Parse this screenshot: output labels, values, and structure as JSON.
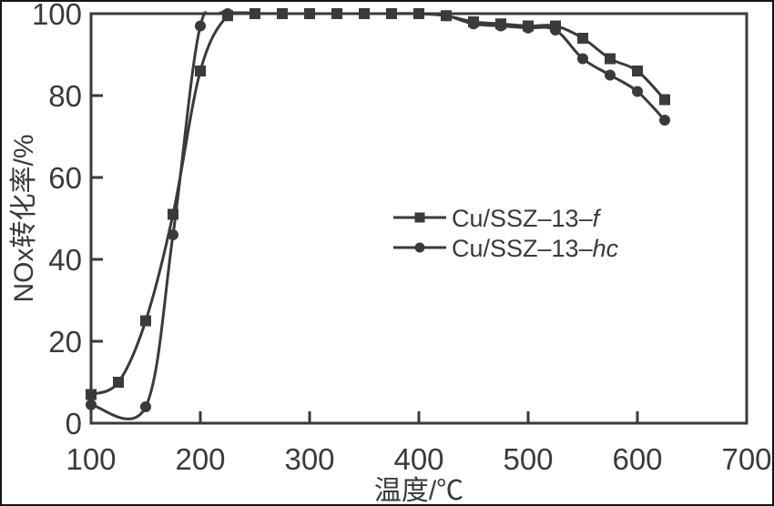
{
  "figure": {
    "background_color": "#ffffff",
    "ink_color": "#3a3a3c",
    "outer_border_color": "#141414"
  },
  "chart_data": {
    "type": "line",
    "title": "",
    "xlabel": "温度/℃",
    "ylabel": "NOx转化率/%",
    "xlim": [
      100,
      700
    ],
    "ylim": [
      0,
      100
    ],
    "x_ticks": [
      100,
      200,
      300,
      400,
      500,
      600,
      700
    ],
    "y_ticks": [
      0,
      20,
      40,
      60,
      80,
      100
    ],
    "grid": false,
    "legend": {
      "position": "center-right",
      "entries": [
        "Cu/SSZ-13-f",
        "Cu/SSZ-13-hc"
      ]
    },
    "series": [
      {
        "name": "Cu/SSZ-13-f",
        "label_prefix": "Cu/SSZ–13–",
        "label_italic": "f",
        "marker": "square",
        "color": "#3a3a3c",
        "points": [
          [
            100,
            7
          ],
          [
            125,
            10
          ],
          [
            150,
            25
          ],
          [
            175,
            51
          ],
          [
            200,
            86
          ],
          [
            225,
            99.5
          ],
          [
            250,
            100
          ],
          [
            275,
            100
          ],
          [
            300,
            100
          ],
          [
            325,
            100
          ],
          [
            350,
            100
          ],
          [
            375,
            100
          ],
          [
            400,
            100
          ],
          [
            425,
            99.5
          ],
          [
            450,
            98
          ],
          [
            475,
            97.5
          ],
          [
            500,
            97
          ],
          [
            525,
            97
          ],
          [
            550,
            94
          ],
          [
            575,
            89
          ],
          [
            600,
            86
          ],
          [
            625,
            79
          ]
        ]
      },
      {
        "name": "Cu/SSZ-13-hc",
        "label_prefix": "Cu/SSZ–13–",
        "label_italic": "hc",
        "marker": "circle",
        "color": "#3a3a3c",
        "points": [
          [
            100,
            4.5
          ],
          [
            150,
            4
          ],
          [
            175,
            46
          ],
          [
            200,
            97
          ],
          [
            225,
            100
          ],
          [
            250,
            100
          ],
          [
            275,
            100
          ],
          [
            300,
            100
          ],
          [
            325,
            100
          ],
          [
            350,
            100
          ],
          [
            375,
            100
          ],
          [
            400,
            100
          ],
          [
            425,
            99.5
          ],
          [
            450,
            97.5
          ],
          [
            475,
            97
          ],
          [
            500,
            96.5
          ],
          [
            525,
            96
          ],
          [
            550,
            89
          ],
          [
            575,
            85
          ],
          [
            600,
            81
          ],
          [
            625,
            74
          ]
        ]
      }
    ]
  }
}
